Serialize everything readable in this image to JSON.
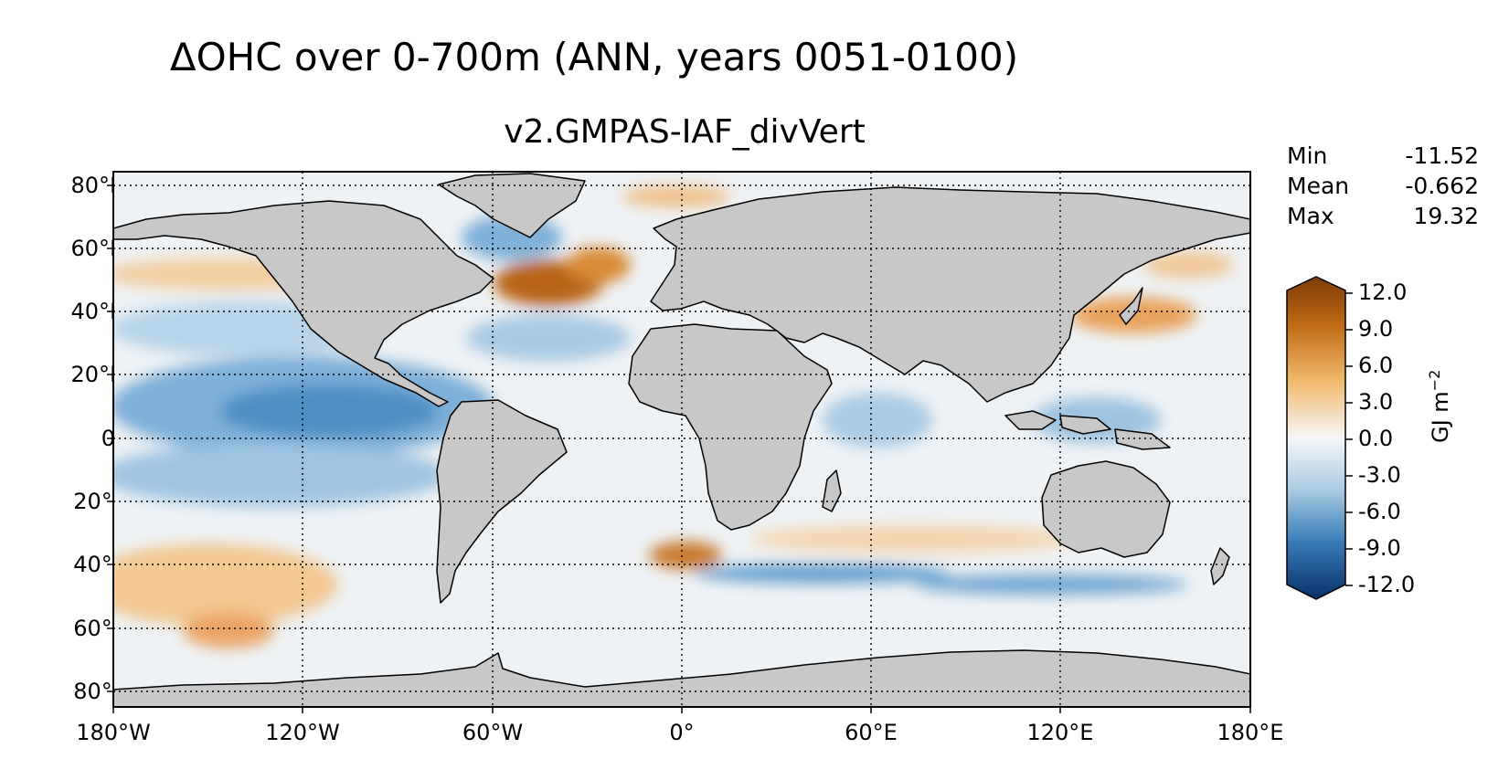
{
  "title": "ΔOHC over 0-700m (ANN, years 0051-0100)",
  "subtitle": "v2.GMPAS-IAF_divVert",
  "stats": [
    {
      "label": "Min",
      "value": "-11.52"
    },
    {
      "label": "Mean",
      "value": "-0.662"
    },
    {
      "label": "Max",
      "value": "19.32"
    }
  ],
  "map": {
    "lat_ticks": [
      "80°N",
      "60°N",
      "40°N",
      "20°N",
      "0°",
      "20°S",
      "40°S",
      "60°S",
      "80°S"
    ],
    "lon_ticks": [
      "180°W",
      "120°W",
      "60°W",
      "0°",
      "60°E",
      "120°E",
      "180°E"
    ],
    "land_color": "#c8c8c8",
    "projection": "PlateCarree"
  },
  "colorbar": {
    "ticks": [
      "12.0",
      "9.0",
      "6.0",
      "3.0",
      "0.0",
      "-3.0",
      "-6.0",
      "-9.0",
      "-12.0"
    ],
    "unit": "GJ m",
    "unit_exp": "−2",
    "range": [
      -12,
      12
    ],
    "colormap": "BrBG-like diverging (brown positive, blue negative)",
    "colors": {
      "max": "#7f3b08",
      "mid": "#f7f7f7",
      "min": "#08306b"
    }
  }
}
